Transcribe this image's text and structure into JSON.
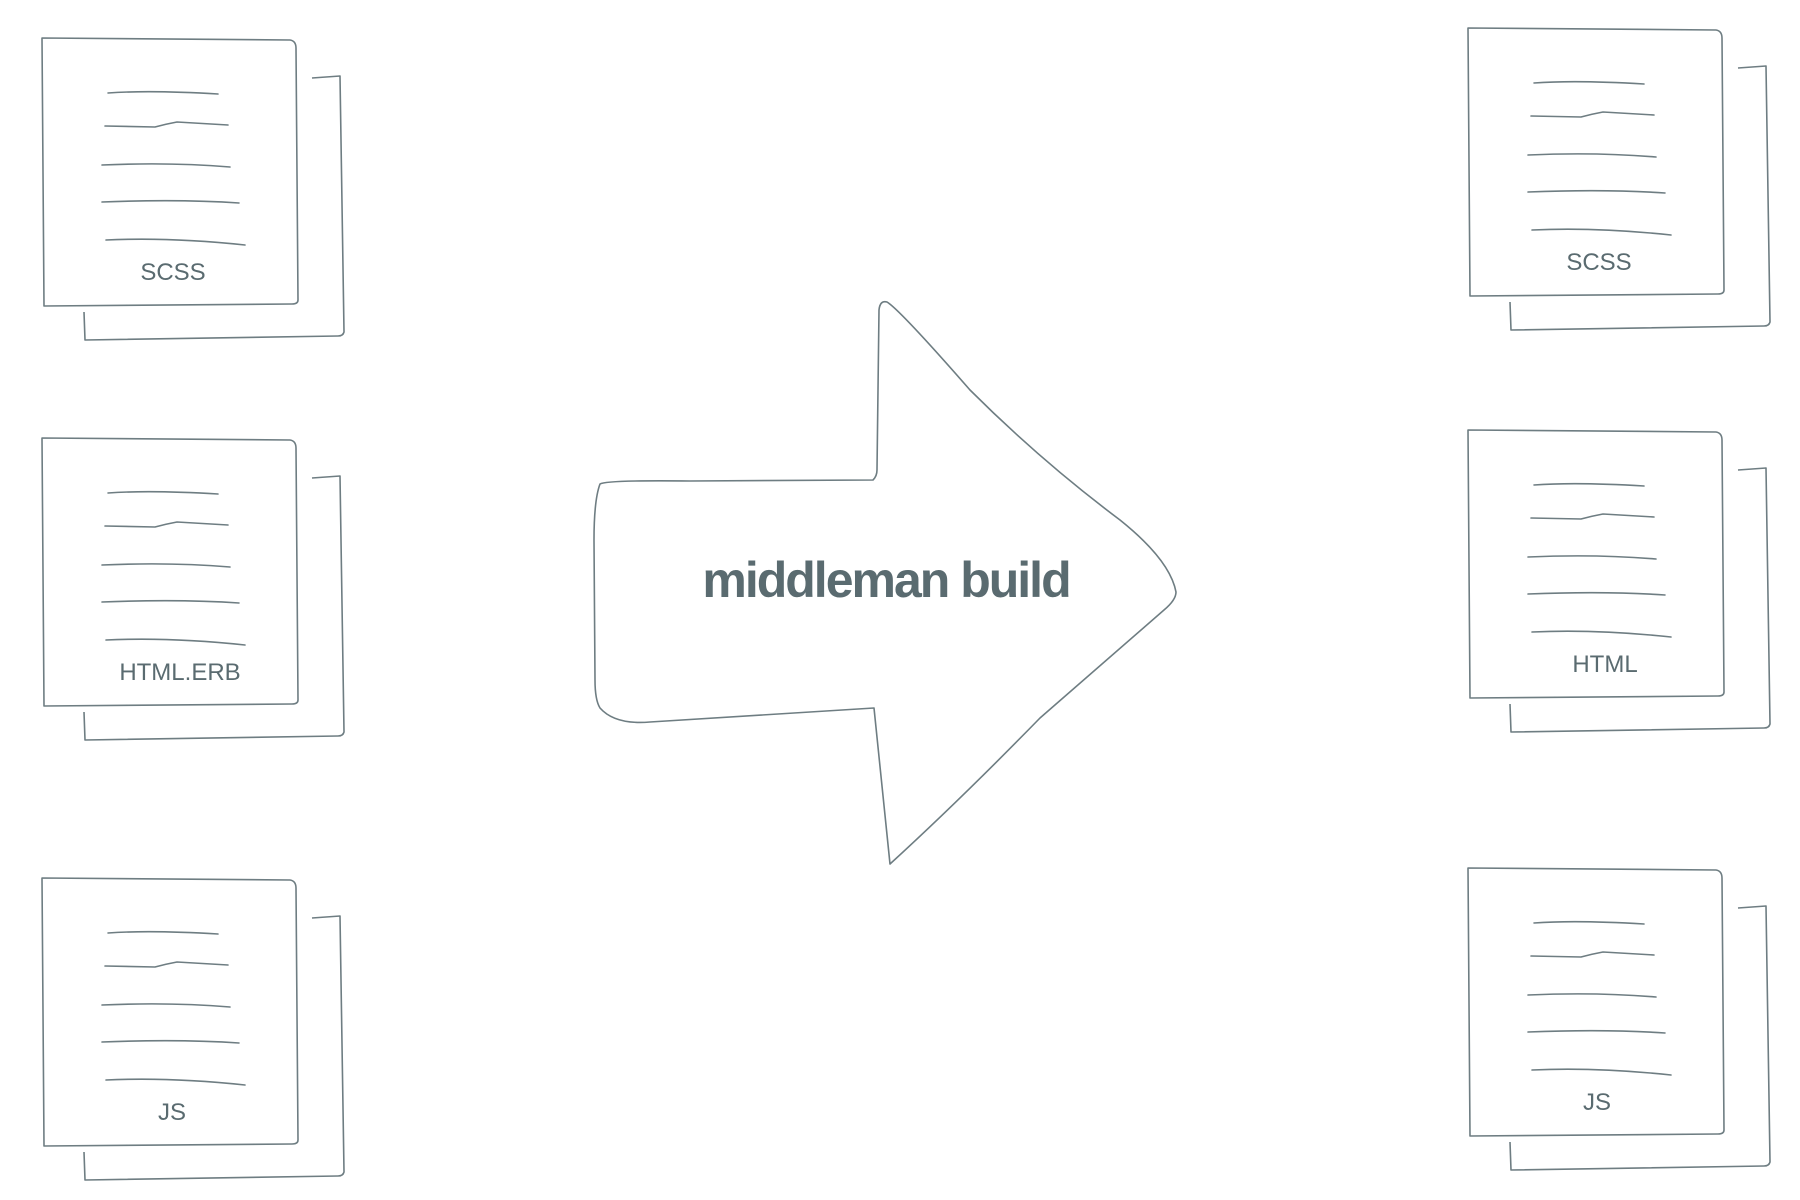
{
  "diagram": {
    "process_label": "middleman build",
    "colors": {
      "stroke": "#6e7d82",
      "text": "#5a6b70",
      "background": "#ffffff"
    },
    "source_files": [
      {
        "label": "SCSS"
      },
      {
        "label": "HTML.ERB"
      },
      {
        "label": "JS"
      }
    ],
    "output_files": [
      {
        "label": "SCSS"
      },
      {
        "label": "HTML"
      },
      {
        "label": "JS"
      }
    ]
  }
}
